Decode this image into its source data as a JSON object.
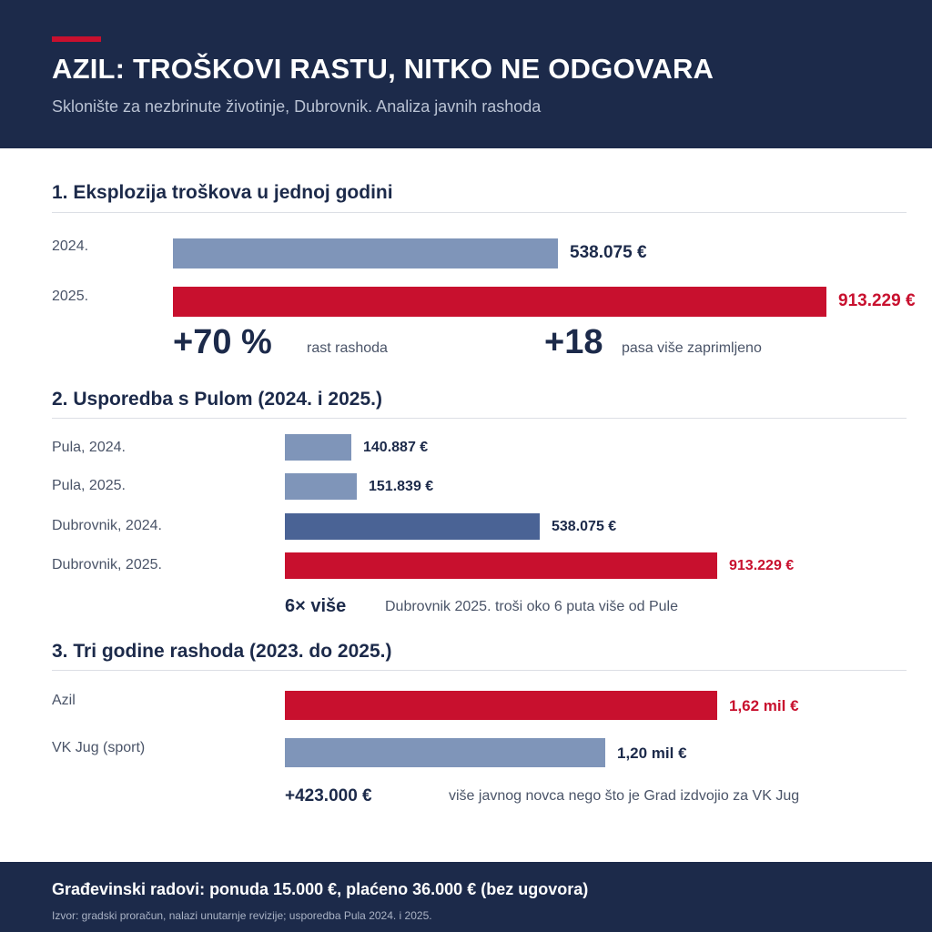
{
  "header": {
    "title": "AZIL: TROŠKOVI RASTU, NITKO NE ODGOVARA",
    "subtitle": "Sklonište za nezbrinute životinje, Dubrovnik. Analiza javnih rashoda",
    "accent_color": "#c8102e"
  },
  "colors": {
    "navy": "#1c2a4a",
    "red": "#c8102e",
    "blue_light": "#7f95b9",
    "blue_dark": "#4a6395"
  },
  "chart_data": [
    {
      "type": "bar",
      "title": "1. Eksplozija troškova u jednoj godini",
      "categories": [
        "2024.",
        "2025."
      ],
      "values": [
        538075,
        913229
      ],
      "value_labels": [
        "538.075 €",
        "913.229 €"
      ],
      "colors": [
        "#7f95b9",
        "#c8102e"
      ],
      "max": 913229,
      "stats": [
        {
          "value": "+70 %",
          "label": "rast rashoda"
        },
        {
          "value": "+18",
          "label": "pasa više zaprimljeno"
        }
      ]
    },
    {
      "type": "bar",
      "title": "2. Usporedba s Pulom (2024. i 2025.)",
      "categories": [
        "Pula, 2024.",
        "Pula, 2025.",
        "Dubrovnik, 2024.",
        "Dubrovnik, 2025."
      ],
      "values": [
        140887,
        151839,
        538075,
        913229
      ],
      "value_labels": [
        "140.887 €",
        "151.839 €",
        "538.075 €",
        "913.229 €"
      ],
      "colors": [
        "#7f95b9",
        "#7f95b9",
        "#4a6395",
        "#c8102e"
      ],
      "max": 913229,
      "note": {
        "value": "6× više",
        "label": "Dubrovnik 2025. troši oko 6 puta više od Pule"
      }
    },
    {
      "type": "bar",
      "title": "3. Tri godine rashoda (2023. do 2025.)",
      "categories": [
        "Azil",
        "VK Jug (sport)"
      ],
      "values": [
        1.62,
        1.2
      ],
      "value_labels": [
        "1,62 mil €",
        "1,20 mil €"
      ],
      "colors": [
        "#c8102e",
        "#7f95b9"
      ],
      "max": 1.62,
      "note": {
        "value": "+423.000 €",
        "label": "više javnog novca nego što je Grad izdvojio za VK Jug"
      }
    }
  ],
  "footer": {
    "main": "Građevinski radovi: ponuda 15.000 €, plaćeno 36.000 € (bez ugovora)",
    "source": "Izvor: gradski proračun, nalazi unutarnje revizije; usporedba Pula 2024. i 2025."
  }
}
